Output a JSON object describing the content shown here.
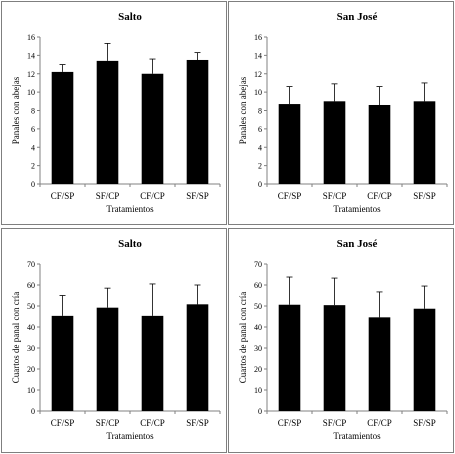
{
  "chart_data": [
    {
      "type": "bar",
      "title": "Salto",
      "xlabel": "Tratamientos",
      "ylabel": "Panales con abejas",
      "categories": [
        "CF/SP",
        "SF/CP",
        "CF/CP",
        "SF/SP"
      ],
      "values": [
        12.2,
        13.4,
        12.0,
        13.5
      ],
      "errors": [
        0.8,
        1.9,
        1.6,
        0.8
      ],
      "ylim": [
        0,
        16
      ],
      "yticks": [
        0,
        2,
        4,
        6,
        8,
        10,
        12,
        14,
        16
      ],
      "grid": false,
      "bar_color": "#000000"
    },
    {
      "type": "bar",
      "title": "San José",
      "xlabel": "Tratamientos",
      "ylabel": "Panales con abejas",
      "categories": [
        "CF/SP",
        "SF/CP",
        "CF/CP",
        "SF/SP"
      ],
      "values": [
        8.7,
        9.0,
        8.6,
        9.0
      ],
      "errors": [
        1.9,
        1.9,
        2.0,
        2.0
      ],
      "ylim": [
        0,
        16
      ],
      "yticks": [
        0,
        2,
        4,
        6,
        8,
        10,
        12,
        14,
        16
      ],
      "grid": false,
      "bar_color": "#000000"
    },
    {
      "type": "bar",
      "title": "Salto",
      "xlabel": "Tratamientos",
      "ylabel": "Cuartos de panal con cría",
      "categories": [
        "CF/SP",
        "SF/CP",
        "CF/CP",
        "SF/SP"
      ],
      "values": [
        45.3,
        49.2,
        45.3,
        50.8
      ],
      "errors": [
        9.7,
        9.3,
        15.2,
        9.2
      ],
      "ylim": [
        0,
        70
      ],
      "yticks": [
        0,
        10,
        20,
        30,
        40,
        50,
        60,
        70
      ],
      "grid": false,
      "bar_color": "#000000"
    },
    {
      "type": "bar",
      "title": "San José",
      "xlabel": "Tratamientos",
      "ylabel": "Cuartos de panal con cría",
      "categories": [
        "CF/SP",
        "SF/CP",
        "CF/CP",
        "SF/SP"
      ],
      "values": [
        50.6,
        50.4,
        44.6,
        48.7
      ],
      "errors": [
        13.2,
        12.9,
        12.1,
        10.8
      ],
      "ylim": [
        0,
        70
      ],
      "yticks": [
        0,
        10,
        20,
        30,
        40,
        50,
        60,
        70
      ],
      "grid": false,
      "bar_color": "#000000"
    }
  ]
}
